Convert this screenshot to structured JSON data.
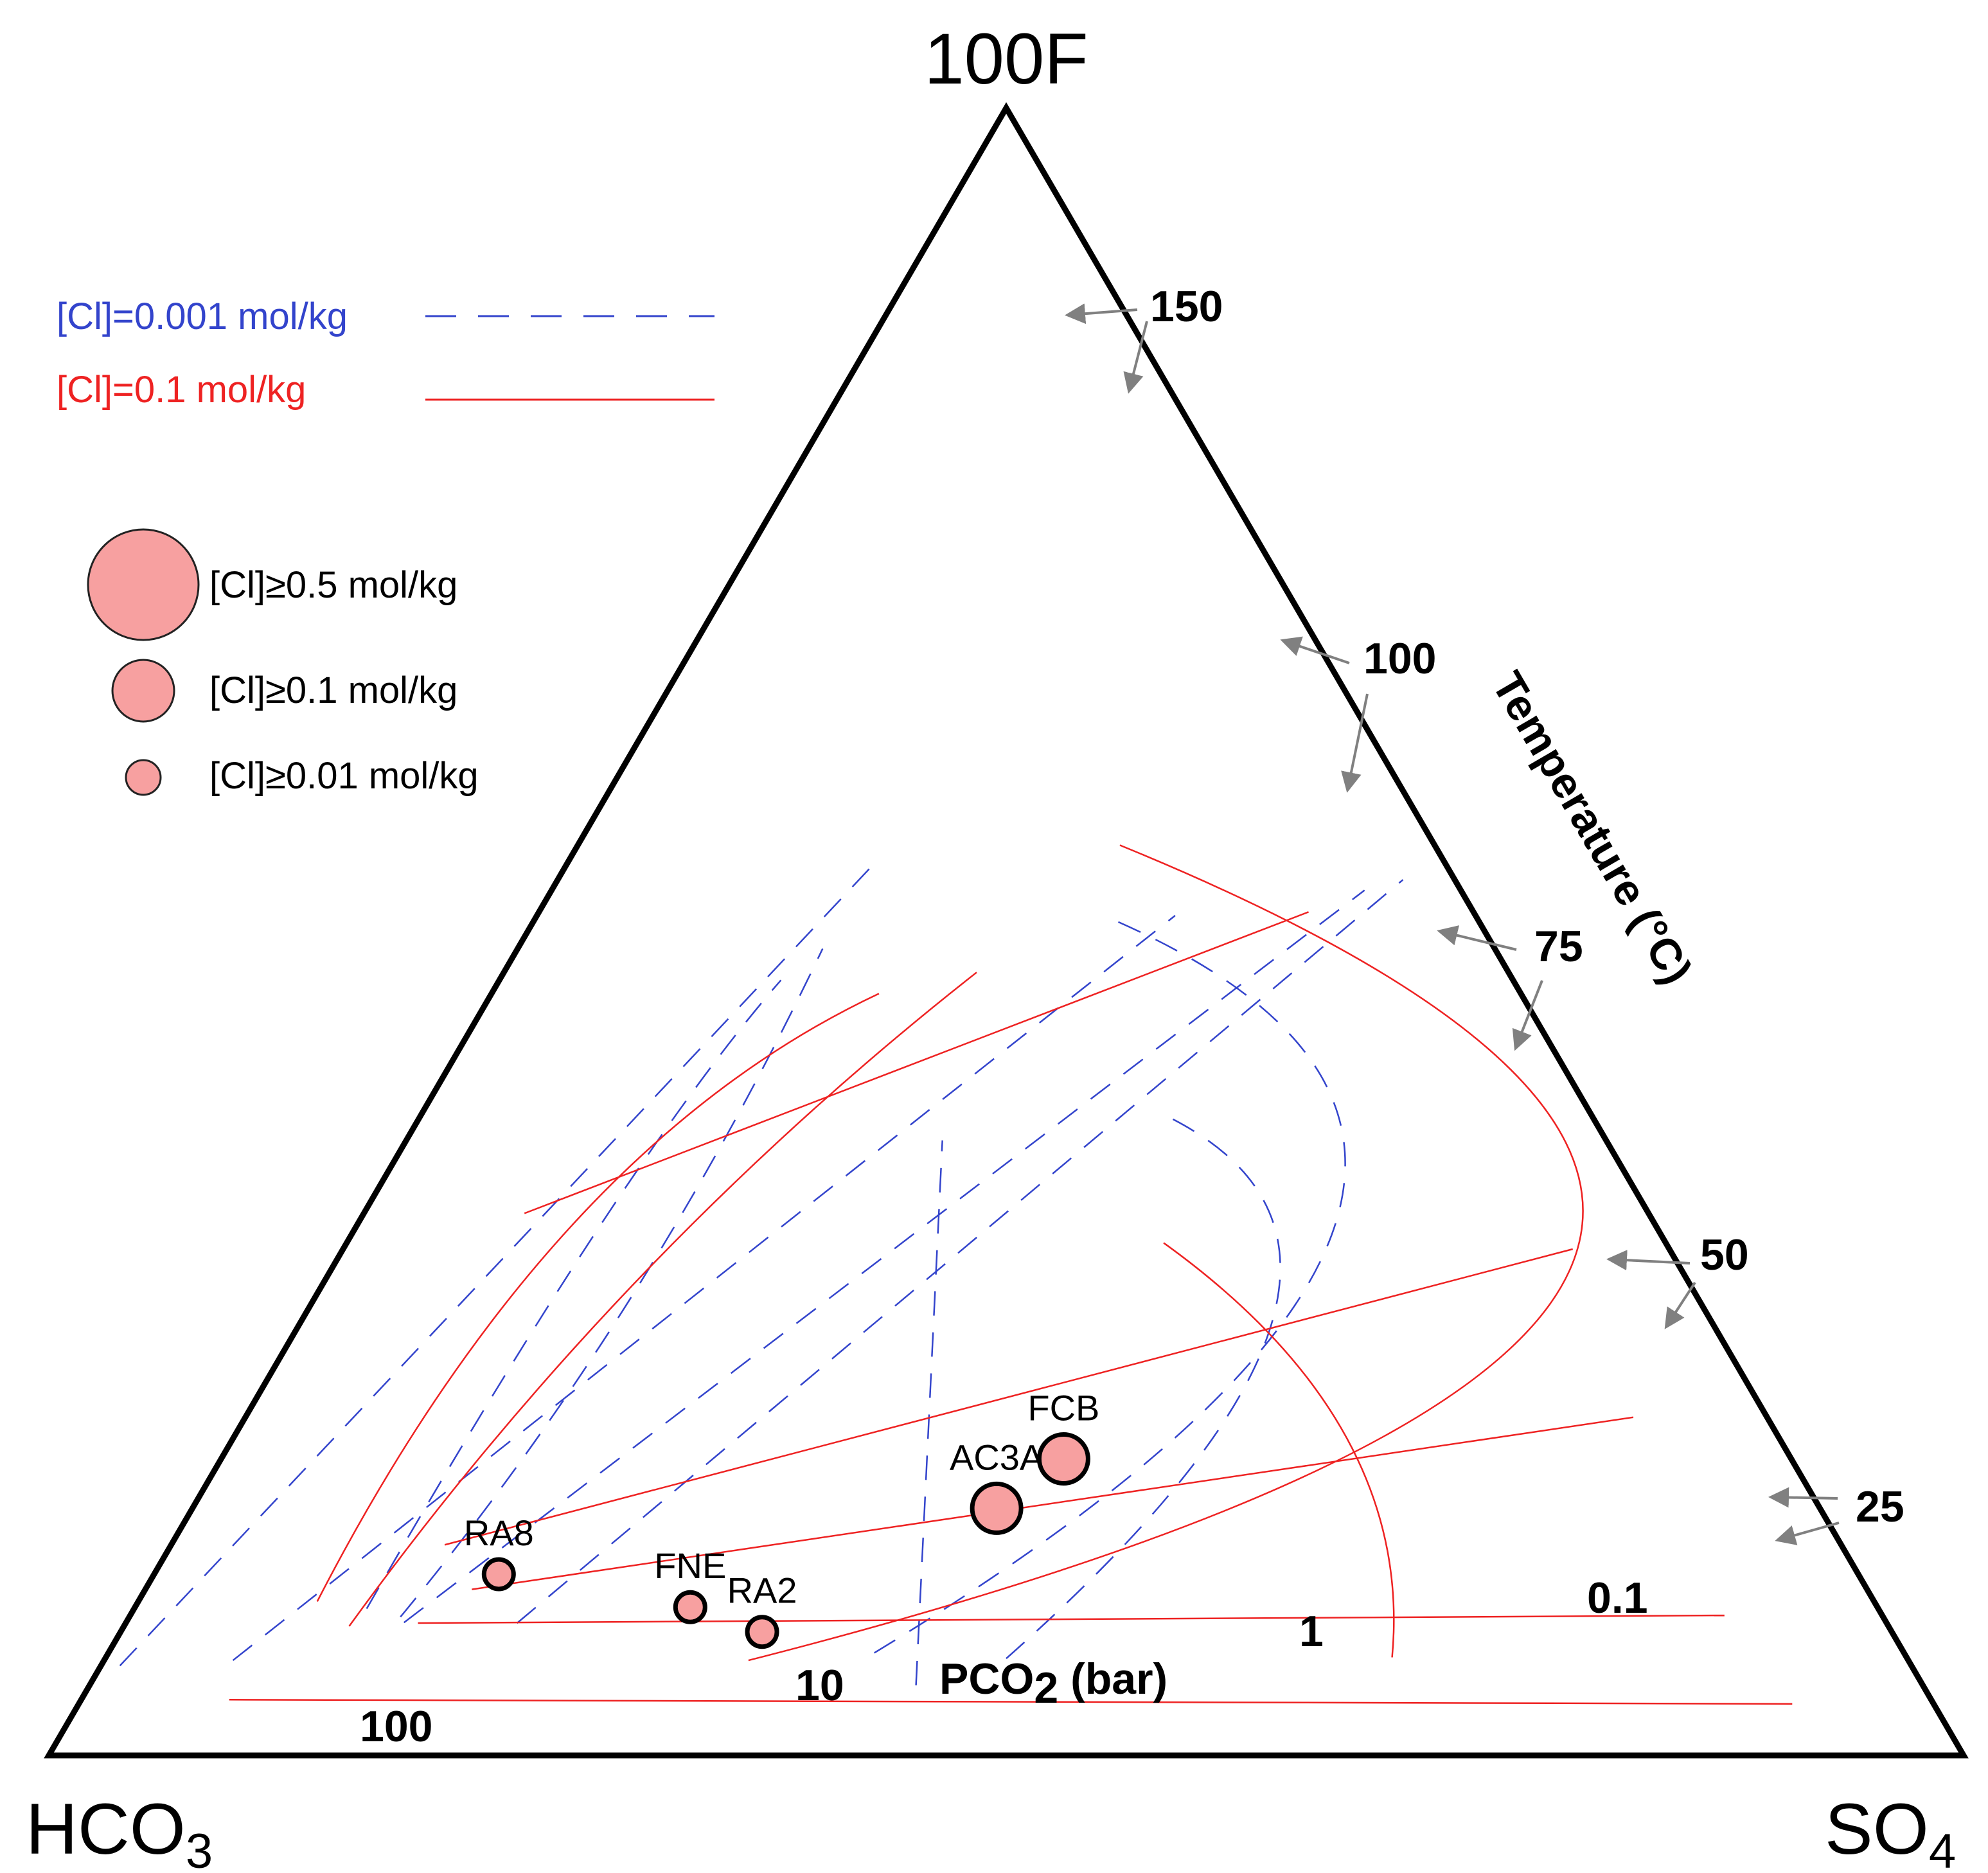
{
  "chart_data": {
    "type": "ternary",
    "apices": {
      "top": "100F",
      "left_base": "HCO",
      "left_sub": "3",
      "right_base": "SO",
      "right_sub": "4"
    },
    "axis_titles": {
      "temperature": "Temperature (°C)",
      "pco2_main": "PCO",
      "pco2_sub": "2",
      "pco2_unit": " (bar)"
    },
    "colors": {
      "low_cl": "#3344cc",
      "high_cl": "#ee2222",
      "sample_fill": "#f7a0a0",
      "arrow": "#808080",
      "frame": "#000000"
    },
    "legend": {
      "lines": [
        {
          "label": "[Cl]=0.001 mol/kg",
          "style": "dashed",
          "color": "#3344cc"
        },
        {
          "label": "[Cl]=0.1 mol/kg",
          "style": "solid",
          "color": "#ee2222"
        }
      ],
      "sizes": [
        {
          "label": "[Cl]≥0.5 mol/kg",
          "min_cl": 0.5
        },
        {
          "label": "[Cl]≥0.1 mol/kg",
          "min_cl": 0.1
        },
        {
          "label": "[Cl]≥0.01 mol/kg",
          "min_cl": 0.01
        }
      ]
    },
    "temperature_labels": [
      "150",
      "100",
      "75",
      "50",
      "25"
    ],
    "pco2_labels": [
      "100",
      "10",
      "1",
      "0.1"
    ],
    "samples": [
      {
        "name": "RA8",
        "F": 11.0,
        "HCO3": 71.0,
        "SO4": 18.0,
        "cl_class": 0.01
      },
      {
        "name": "FNE",
        "F": 9.0,
        "HCO3": 62.0,
        "SO4": 29.0,
        "cl_class": 0.01
      },
      {
        "name": "RA2",
        "F": 7.5,
        "HCO3": 59.0,
        "SO4": 33.5,
        "cl_class": 0.01
      },
      {
        "name": "AC3A",
        "F": 15.0,
        "HCO3": 43.0,
        "SO4": 42.0,
        "cl_class": 0.1
      },
      {
        "name": "FCB",
        "F": 18.0,
        "HCO3": 38.0,
        "SO4": 44.0,
        "cl_class": 0.1
      }
    ],
    "isotherms_0_1": [
      {
        "label": "150",
        "points": [
          [
            51.0,
            91.0,
            13.0
          ],
          [
            53.5,
            9.0,
            42.0
          ]
        ]
      },
      {
        "label": "100",
        "points": [
          [
            17.0,
            97.0,
            19.0
          ],
          [
            33.5,
            5.5,
            70.0
          ]
        ]
      },
      {
        "label": "75",
        "points": [
          [
            13.0,
            94.0,
            22.0
          ],
          [
            23.5,
            8.0,
            83.0
          ]
        ]
      },
      {
        "label": "50",
        "points": [
          [
            10.0,
            95.5,
            19.0
          ],
          [
            9.8,
            9.5,
            96.0
          ]
        ]
      },
      {
        "label": "25",
        "points": [
          [
            3.5,
            92.0,
            8.0
          ],
          [
            3.6,
            8.5,
            103.0
          ]
        ]
      }
    ],
    "isotherms_0_001": [
      {
        "label": "150",
        "points": [
          [
            7.0,
            86.5,
            71.0
          ],
          [
            84.0,
            78.0,
            63.0
          ]
        ]
      },
      {
        "label": "100",
        "points": [
          [
            11.0,
            98.0,
            28.0
          ],
          [
            59.0,
            3.0,
            49.0
          ]
        ]
      },
      {
        "label": "75",
        "points": [
          [
            10.0,
            96.0,
            18.0
          ],
          [
            47.0,
            4.5,
            38.0
          ]
        ]
      },
      {
        "label": "50",
        "points": [
          [
            6.0,
            91.0,
            7.0
          ],
          [
            26.0,
            8.0,
            17.0
          ]
        ]
      },
      {
        "label": "25",
        "points": [
          [
            5.5,
            94.5,
            1.0
          ],
          [
            13.5,
            7.5,
            4.0
          ]
        ]
      }
    ],
    "pco2_0_1": [
      {
        "label": "100",
        "points": [
          [
            6.2,
            28.0,
            70.0
          ],
          [
            12.0,
            14.0,
            36.0
          ],
          [
            35.0,
            29.5,
            48.0
          ]
        ]
      },
      {
        "label": "10",
        "points": [
          [
            6.0,
            63.0,
            35.0
          ],
          [
            20.0,
            4.0,
            44.0
          ],
          [
            60.5,
            18.0,
            31.0
          ]
        ]
      },
      {
        "label": "1",
        "points": [
          [
            8.0,
            82.0,
            12.0
          ],
          [
            35.5,
            66.5,
            20.0
          ],
          [
            77.0,
            45.0,
            40.0
          ]
        ]
      },
      {
        "label": "0.1",
        "points": [
          [
            10.0,
            87.0,
            10.0
          ],
          [
            43.0,
            75.0,
            15.0
          ],
          [
            80.0,
            58.0,
            35.0
          ]
        ]
      }
    ],
    "pco2_0_001": [
      {
        "label": "100",
        "points": [
          [
            5.0,
            40.0,
            40.0
          ],
          [
            17.0,
            15.0,
            33.0
          ],
          [
            52.5,
            30.0,
            53.0
          ]
        ]
      },
      {
        "label": "10",
        "points": [
          [
            7.0,
            60.5,
            45.0
          ],
          [
            22.0,
            11.5,
            35.0
          ],
          [
            72.0,
            27.0,
            43.0
          ]
        ]
      },
      {
        "label": "1",
        "points": [
          [
            9.5,
            87.5,
            16.0
          ],
          [
            40.0,
            81.5,
            24.0
          ],
          [
            83.0,
            59.5,
            27.0
          ]
        ]
      },
      {
        "label": "0.1",
        "points": [
          [
            11.0,
            97.5,
            15.0
          ],
          [
            48.0,
            82.5,
            19.0
          ],
          [
            80.0,
            65.0,
            25.0
          ]
        ]
      }
    ]
  }
}
